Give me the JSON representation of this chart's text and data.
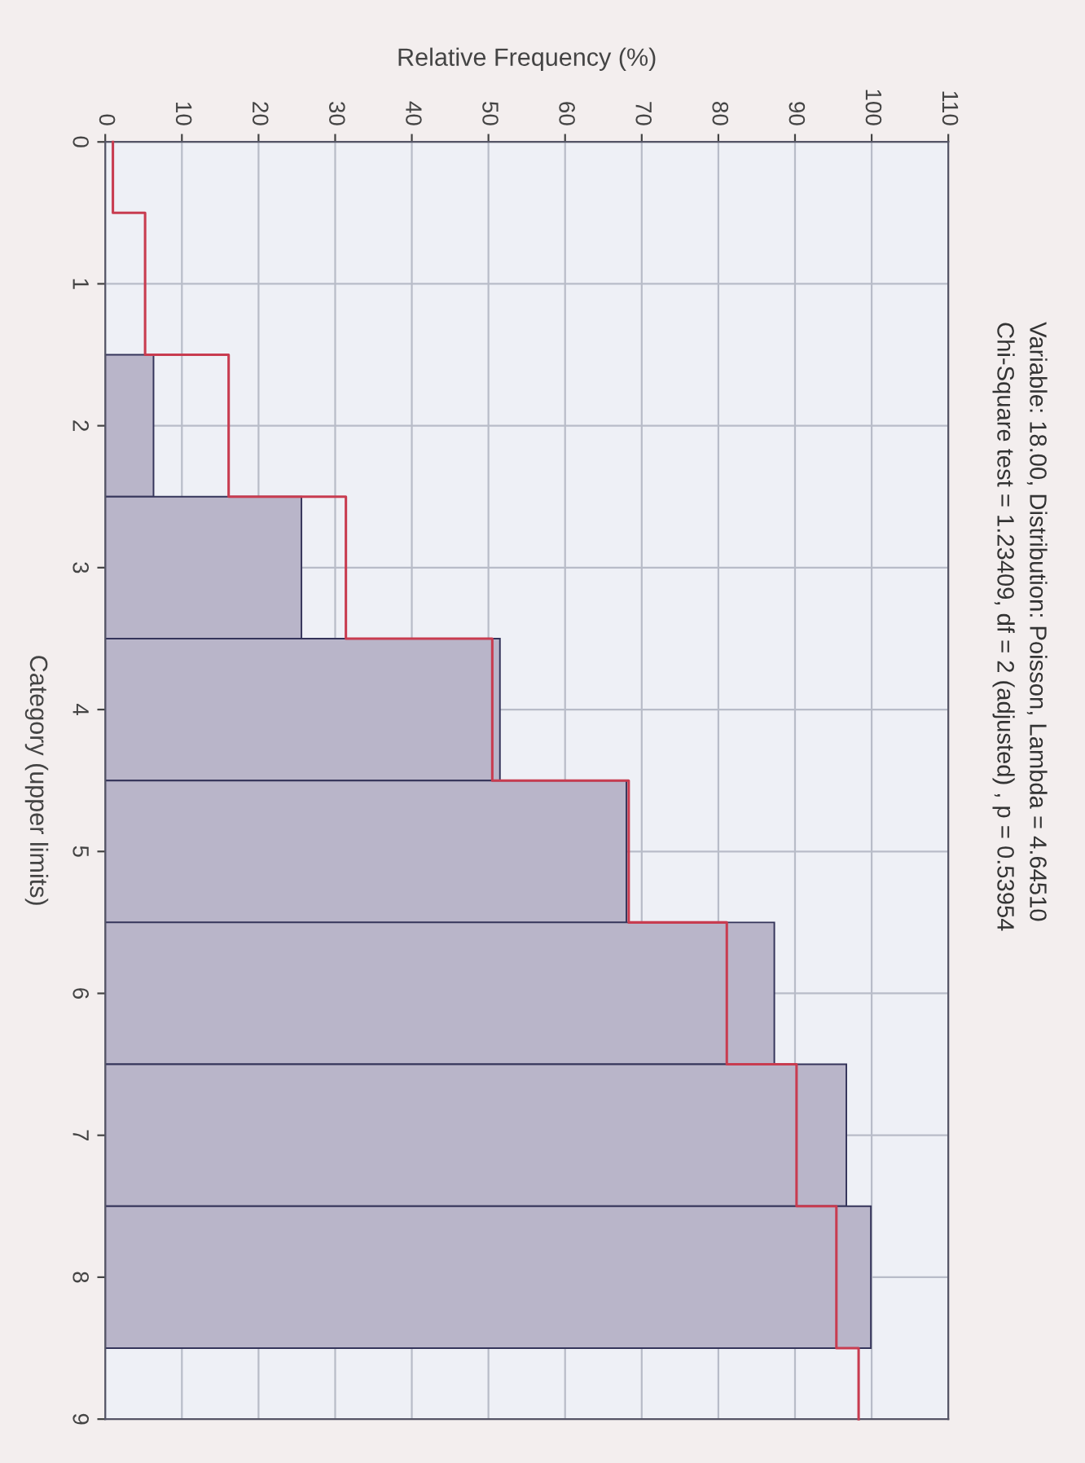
{
  "chart_data": {
    "type": "bar",
    "orientation": "horizontal",
    "title": "Variable: 18.00, Distribution: Poisson, Lambda = 4.64510",
    "subtitle": "Chi-Square test = 1.23409, df = 2 (adjusted) , p = 0.53954",
    "xlabel": "Relative Frequency (%)",
    "ylabel": "Category (upper limits)",
    "series": [
      {
        "color": "#b9b5c9",
        "x": [
          2,
          3,
          4,
          5,
          6,
          7,
          8
        ],
        "values": [
          6.3,
          25.6,
          51.5,
          68.0,
          87.3,
          96.7,
          99.9
        ]
      },
      {
        "type": "step",
        "color": "#c83c50",
        "x": [
          0,
          1,
          2,
          3,
          4,
          5,
          6,
          7,
          8,
          9
        ],
        "values": [
          1.0,
          5.2,
          16.1,
          31.4,
          50.5,
          68.3,
          81.1,
          90.2,
          95.4,
          98.3
        ]
      }
    ],
    "xlim": [
      0,
      110
    ],
    "xticks": [
      0,
      10,
      20,
      30,
      40,
      50,
      60,
      70,
      80,
      90,
      100,
      110
    ],
    "ylim": [
      9,
      0
    ],
    "yticks": [
      0,
      1,
      2,
      3,
      4,
      5,
      6,
      7,
      8,
      9
    ],
    "grid": true
  }
}
